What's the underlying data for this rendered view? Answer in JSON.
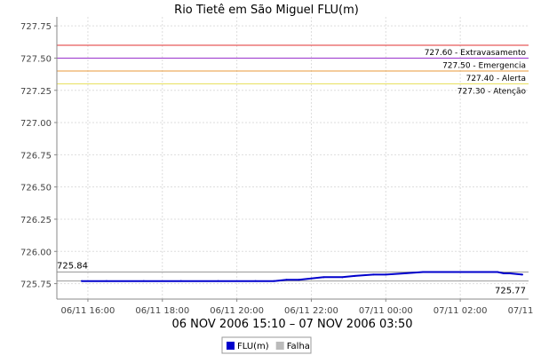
{
  "chart_data": {
    "type": "line",
    "title": "Rio Tietê em São Miguel FLU(m)",
    "subtitle": "06 NOV 2006 15:10 – 07 NOV 2006 03:50",
    "ylim": [
      725.63,
      727.82
    ],
    "xlim": [
      "2006-11-06 15:10",
      "2006-11-07 03:50"
    ],
    "y_ticks": [
      "725.75",
      "726.00",
      "726.25",
      "726.50",
      "726.75",
      "727.00",
      "727.25",
      "727.50",
      "727.75"
    ],
    "x_ticks": [
      "06/11 16:00",
      "06/11 18:00",
      "06/11 20:00",
      "06/11 22:00",
      "07/11 00:00",
      "07/11 02:00",
      "07/11 04:00"
    ],
    "grid": true,
    "thresholds": [
      {
        "value": 727.6,
        "label": "727.60 - Extravasamento",
        "color": "#e03030"
      },
      {
        "value": 727.5,
        "label": "727.50 - Emergencia",
        "color": "#9933cc"
      },
      {
        "value": 727.4,
        "label": "727.40 - Alerta",
        "color": "#e89a3a"
      },
      {
        "value": 727.3,
        "label": "727.30 - Atenção",
        "color": "#e8e060"
      }
    ],
    "markers": {
      "max_label": "725.84",
      "max_value": 725.84,
      "min_label": "725.77",
      "min_value": 725.77
    },
    "series": [
      {
        "name": "FLU(m)",
        "color": "#0000cc",
        "x": [
          "2006-11-06 15:50",
          "2006-11-06 16:30",
          "2006-11-06 17:30",
          "2006-11-06 18:30",
          "2006-11-06 19:30",
          "2006-11-06 20:30",
          "2006-11-06 21:00",
          "2006-11-06 21:20",
          "2006-11-06 21:40",
          "2006-11-06 22:00",
          "2006-11-06 22:20",
          "2006-11-06 22:50",
          "2006-11-06 23:10",
          "2006-11-06 23:40",
          "2006-11-07 00:00",
          "2006-11-07 00:30",
          "2006-11-07 01:00",
          "2006-11-07 01:30",
          "2006-11-07 02:00",
          "2006-11-07 02:30",
          "2006-11-07 03:00",
          "2006-11-07 03:10",
          "2006-11-07 03:20",
          "2006-11-07 03:40"
        ],
        "values": [
          725.77,
          725.77,
          725.77,
          725.77,
          725.77,
          725.77,
          725.77,
          725.78,
          725.78,
          725.79,
          725.8,
          725.8,
          725.81,
          725.82,
          725.82,
          725.83,
          725.84,
          725.84,
          725.84,
          725.84,
          725.84,
          725.83,
          725.83,
          725.82
        ]
      }
    ],
    "legend": {
      "position": "bottom",
      "items": [
        {
          "label": "FLU(m)",
          "color": "#0000cc"
        },
        {
          "label": "Falha",
          "color": "#bbbbbb"
        }
      ]
    }
  }
}
